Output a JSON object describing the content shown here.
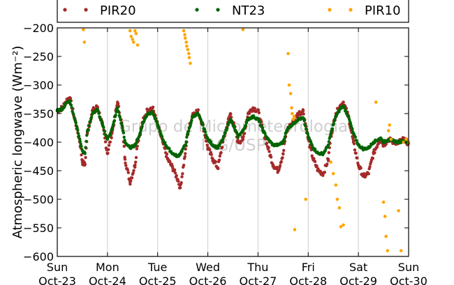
{
  "chart_data": {
    "type": "scatter",
    "ylabel": "Atmospheric longwave (Wm⁻²)",
    "ylim": [
      -600,
      -200
    ],
    "yticks": [
      -200,
      -250,
      -300,
      -350,
      -400,
      -450,
      -500,
      -550,
      -600
    ],
    "xlim": [
      "2016-10-23",
      "2016-10-30"
    ],
    "xticks": [
      {
        "day": "Sun",
        "date": "Oct-23"
      },
      {
        "day": "Mon",
        "date": "Oct-24"
      },
      {
        "day": "Tue",
        "date": "Oct-25"
      },
      {
        "day": "Wed",
        "date": "Oct-26"
      },
      {
        "day": "Thu",
        "date": "Oct-27"
      },
      {
        "day": "Fri",
        "date": "Oct-28"
      },
      {
        "day": "Sat",
        "date": "Oct-29"
      },
      {
        "day": "Sun",
        "date": "Oct-30"
      }
    ],
    "grid": "vertical",
    "legend_position": "top",
    "watermark": [
      "Grupo de Micrometeorologia",
      "IAG/USP"
    ],
    "series": [
      {
        "name": "PIR20",
        "color": "#a52a2a",
        "x_unit": "days since Oct-23 00:00",
        "x": [
          0.0,
          0.1,
          0.2,
          0.25,
          0.35,
          0.45,
          0.5,
          0.55,
          0.6,
          0.7,
          0.8,
          0.9,
          1.0,
          1.1,
          1.2,
          1.3,
          1.35,
          1.45,
          1.55,
          1.6,
          1.65,
          1.7,
          1.8,
          1.9,
          2.0,
          2.1,
          2.2,
          2.3,
          2.4,
          2.45,
          2.55,
          2.6,
          2.7,
          2.8,
          2.9,
          3.0,
          3.1,
          3.2,
          3.3,
          3.4,
          3.45,
          3.55,
          3.6,
          3.7,
          3.8,
          3.9,
          4.0,
          4.1,
          4.2,
          4.3,
          4.4,
          4.5,
          4.55,
          4.6,
          4.7,
          4.8,
          4.9,
          5.0,
          5.1,
          5.2,
          5.3,
          5.4,
          5.45,
          5.55,
          5.65,
          5.7,
          5.8,
          5.9,
          6.0,
          6.1,
          6.2,
          6.3,
          6.4,
          6.45,
          6.5,
          6.55,
          6.6,
          6.7,
          6.8,
          6.9,
          7.0
        ],
        "y": [
          -345,
          -340,
          -325,
          -322,
          -360,
          -400,
          -435,
          -440,
          -385,
          -345,
          -338,
          -370,
          -420,
          -380,
          -330,
          -375,
          -430,
          -470,
          -440,
          -400,
          -385,
          -365,
          -343,
          -340,
          -370,
          -400,
          -430,
          -445,
          -465,
          -480,
          -420,
          -385,
          -350,
          -345,
          -370,
          -410,
          -430,
          -445,
          -400,
          -365,
          -350,
          -380,
          -400,
          -395,
          -350,
          -340,
          -345,
          -380,
          -410,
          -440,
          -450,
          -420,
          -390,
          -375,
          -365,
          -350,
          -345,
          -395,
          -430,
          -450,
          -455,
          -430,
          -390,
          -350,
          -335,
          -330,
          -355,
          -400,
          -440,
          -460,
          -455,
          -420,
          -400,
          -395,
          -405,
          -400,
          -395,
          -400,
          -400,
          -395,
          -402
        ]
      },
      {
        "name": "NT23",
        "color": "#006400",
        "x_unit": "days since Oct-23 00:00",
        "x": [
          0.0,
          0.1,
          0.2,
          0.25,
          0.35,
          0.45,
          0.5,
          0.55,
          0.6,
          0.7,
          0.8,
          0.9,
          1.0,
          1.1,
          1.2,
          1.3,
          1.35,
          1.45,
          1.55,
          1.6,
          1.65,
          1.7,
          1.8,
          1.9,
          2.0,
          2.1,
          2.2,
          2.3,
          2.4,
          2.45,
          2.55,
          2.6,
          2.7,
          2.8,
          2.9,
          3.0,
          3.1,
          3.2,
          3.3,
          3.4,
          3.45,
          3.55,
          3.6,
          3.7,
          3.8,
          3.9,
          4.0,
          4.1,
          4.2,
          4.3,
          4.4,
          4.5,
          4.55,
          4.6,
          4.7,
          4.8,
          4.9,
          5.0,
          5.1,
          5.2,
          5.3,
          5.4,
          5.45,
          5.55,
          5.65,
          5.7,
          5.8,
          5.9,
          6.0,
          6.1,
          6.2,
          6.3,
          6.4,
          6.45,
          6.5,
          6.55,
          6.6,
          6.7,
          6.8,
          6.9,
          7.0
        ],
        "y": [
          -345,
          -342,
          -330,
          -328,
          -360,
          -395,
          -415,
          -420,
          -380,
          -350,
          -343,
          -370,
          -395,
          -375,
          -340,
          -375,
          -400,
          -410,
          -405,
          -395,
          -385,
          -368,
          -350,
          -348,
          -370,
          -395,
          -410,
          -420,
          -425,
          -420,
          -405,
          -385,
          -355,
          -350,
          -370,
          -395,
          -405,
          -410,
          -395,
          -370,
          -360,
          -380,
          -390,
          -380,
          -360,
          -355,
          -360,
          -380,
          -395,
          -405,
          -405,
          -400,
          -385,
          -375,
          -368,
          -360,
          -358,
          -390,
          -410,
          -420,
          -420,
          -405,
          -385,
          -355,
          -340,
          -337,
          -355,
          -385,
          -405,
          -412,
          -410,
          -400,
          -395,
          -393,
          -400,
          -398,
          -395,
          -398,
          -400,
          -398,
          -400
        ]
      },
      {
        "name": "PIR10",
        "color": "#ffa500",
        "x_unit": "days since Oct-23 00:00",
        "x": [
          0.52,
          0.54,
          1.45,
          1.47,
          1.5,
          1.52,
          1.55,
          1.57,
          1.6,
          2.52,
          2.54,
          2.55,
          2.57,
          2.58,
          2.6,
          2.62,
          2.63,
          2.65,
          3.7,
          4.6,
          4.62,
          4.65,
          4.67,
          4.68,
          4.7,
          4.72,
          4.73,
          4.95,
          5.45,
          5.5,
          5.55,
          5.58,
          5.62,
          5.65,
          5.7,
          6.35,
          6.5,
          6.53,
          6.55,
          6.58,
          6.6,
          6.62,
          6.65,
          6.8,
          6.85,
          6.9,
          6.95,
          7.0
        ],
        "y": [
          -203,
          -225,
          -205,
          -215,
          -220,
          -225,
          -205,
          -210,
          -230,
          -205,
          -212,
          -218,
          -225,
          -232,
          -238,
          -245,
          -252,
          -262,
          -203,
          -245,
          -300,
          -315,
          -340,
          -350,
          -360,
          -355,
          -553,
          -500,
          -435,
          -455,
          -475,
          -500,
          -515,
          -548,
          -545,
          -330,
          -505,
          -530,
          -565,
          -590,
          -380,
          -370,
          -395,
          -520,
          -590,
          -400,
          -395,
          -400
        ]
      }
    ]
  }
}
